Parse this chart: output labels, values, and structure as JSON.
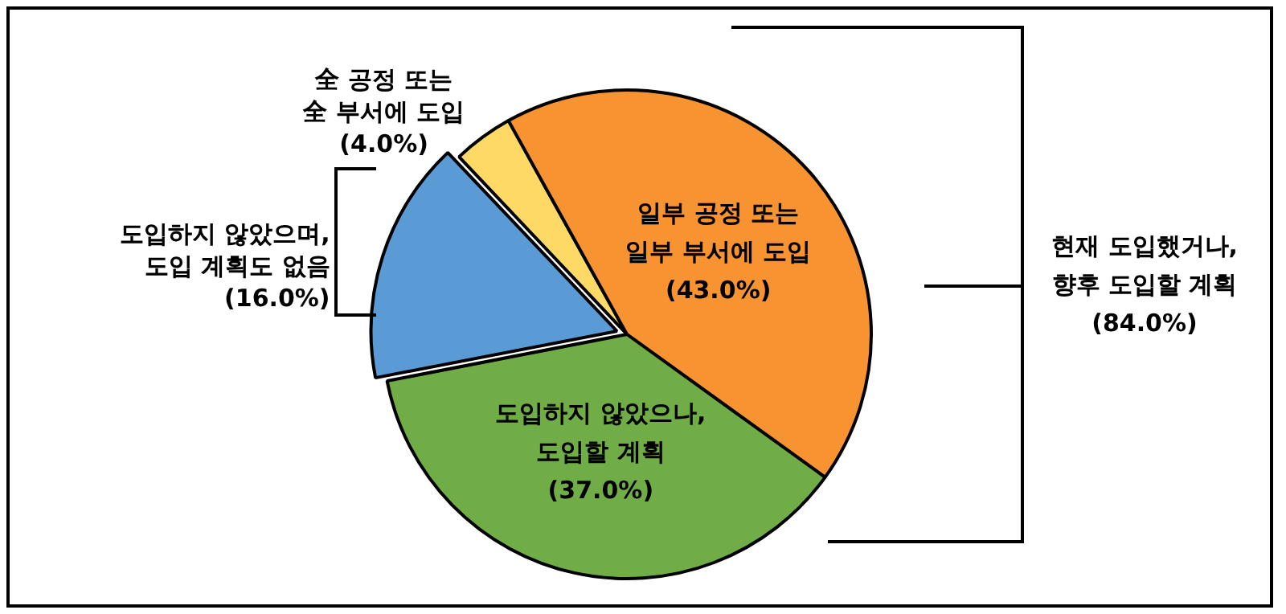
{
  "chart_data": {
    "type": "pie",
    "categories": [
      "全 공정 또는\n全 부서에 도입",
      "일부 공정 또는\n일부 부서에 도입",
      "도입하지 않았으나,\n도입할 계획",
      "도입하지 않았으며,\n도입 계획도 없음"
    ],
    "values": [
      4.0,
      43.0,
      37.0,
      16.0
    ],
    "value_labels": [
      "(4.0%)",
      "(43.0%)",
      "(37.0%)",
      "(16.0%)"
    ],
    "colors": [
      "#ffd966",
      "#f79330",
      "#70ad47",
      "#5b9bd5"
    ],
    "annotations": [
      "현재 도입했거나,\n향후 도입할 계획\n(84.0%)"
    ],
    "legend": false
  }
}
